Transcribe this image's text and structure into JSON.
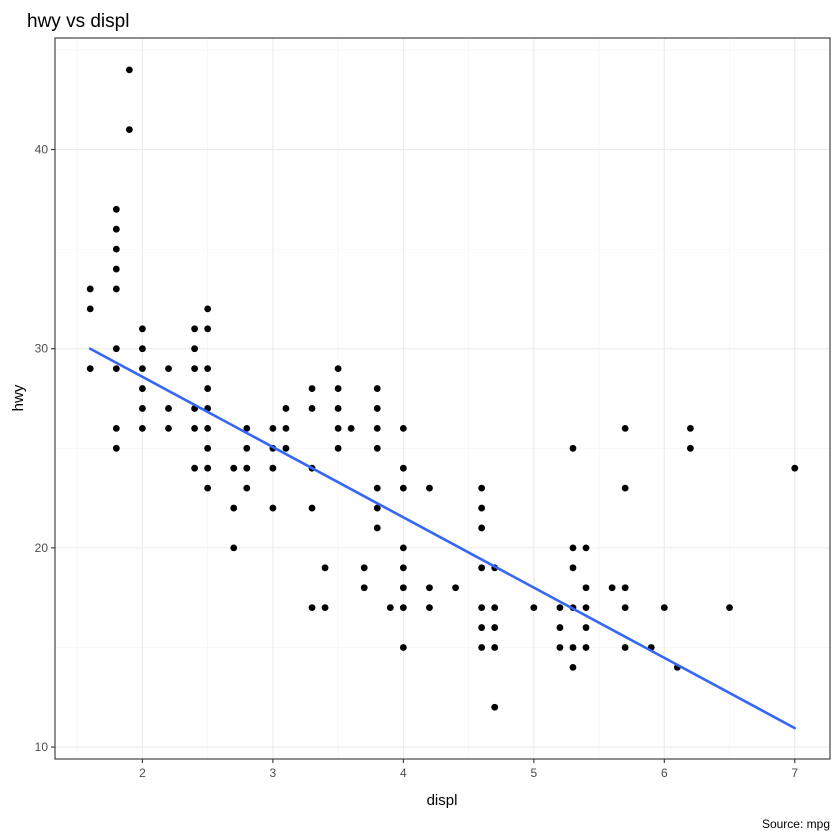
{
  "chart_data": {
    "type": "scatter",
    "title": "hwy vs displ",
    "xlabel": "displ",
    "ylabel": "hwy",
    "caption": "Source: mpg",
    "xlim": [
      1.33,
      7.27
    ],
    "ylim": [
      9.4,
      45.6
    ],
    "x_ticks": [
      2,
      3,
      4,
      5,
      6,
      7
    ],
    "x_tick_labels": [
      "2",
      "3",
      "4",
      "5",
      "6",
      "7"
    ],
    "y_ticks": [
      10,
      20,
      30,
      40
    ],
    "y_tick_labels": [
      "10",
      "20",
      "30",
      "40"
    ],
    "grid": true,
    "point_color": "#000000",
    "line_color": "#3366ff",
    "points": [
      [
        1.6,
        33
      ],
      [
        1.6,
        32
      ],
      [
        1.6,
        29
      ],
      [
        1.8,
        37
      ],
      [
        1.8,
        36
      ],
      [
        1.8,
        35
      ],
      [
        1.8,
        34
      ],
      [
        1.8,
        33
      ],
      [
        1.8,
        30
      ],
      [
        1.8,
        29
      ],
      [
        1.8,
        26
      ],
      [
        1.8,
        25
      ],
      [
        1.9,
        44
      ],
      [
        1.9,
        41
      ],
      [
        2.0,
        31
      ],
      [
        2.0,
        30
      ],
      [
        2.0,
        29
      ],
      [
        2.0,
        28
      ],
      [
        2.0,
        27
      ],
      [
        2.0,
        26
      ],
      [
        2.2,
        29
      ],
      [
        2.2,
        27
      ],
      [
        2.2,
        26
      ],
      [
        2.4,
        31
      ],
      [
        2.4,
        30
      ],
      [
        2.4,
        29
      ],
      [
        2.4,
        27
      ],
      [
        2.4,
        26
      ],
      [
        2.4,
        24
      ],
      [
        2.5,
        32
      ],
      [
        2.5,
        31
      ],
      [
        2.5,
        29
      ],
      [
        2.5,
        28
      ],
      [
        2.5,
        27
      ],
      [
        2.5,
        26
      ],
      [
        2.5,
        25
      ],
      [
        2.5,
        24
      ],
      [
        2.5,
        23
      ],
      [
        2.7,
        24
      ],
      [
        2.7,
        22
      ],
      [
        2.7,
        20
      ],
      [
        2.8,
        26
      ],
      [
        2.8,
        25
      ],
      [
        2.8,
        24
      ],
      [
        2.8,
        23
      ],
      [
        3.0,
        26
      ],
      [
        3.0,
        25
      ],
      [
        3.0,
        24
      ],
      [
        3.0,
        22
      ],
      [
        3.1,
        27
      ],
      [
        3.1,
        26
      ],
      [
        3.1,
        25
      ],
      [
        3.3,
        28
      ],
      [
        3.3,
        27
      ],
      [
        3.3,
        24
      ],
      [
        3.3,
        22
      ],
      [
        3.3,
        17
      ],
      [
        3.4,
        19
      ],
      [
        3.4,
        17
      ],
      [
        3.5,
        29
      ],
      [
        3.5,
        28
      ],
      [
        3.5,
        27
      ],
      [
        3.5,
        26
      ],
      [
        3.5,
        25
      ],
      [
        3.6,
        26
      ],
      [
        3.7,
        19
      ],
      [
        3.7,
        18
      ],
      [
        3.8,
        28
      ],
      [
        3.8,
        27
      ],
      [
        3.8,
        26
      ],
      [
        3.8,
        25
      ],
      [
        3.8,
        23
      ],
      [
        3.8,
        22
      ],
      [
        3.8,
        21
      ],
      [
        3.9,
        17
      ],
      [
        4.0,
        26
      ],
      [
        4.0,
        24
      ],
      [
        4.0,
        23
      ],
      [
        4.0,
        20
      ],
      [
        4.0,
        19
      ],
      [
        4.0,
        18
      ],
      [
        4.0,
        17
      ],
      [
        4.0,
        15
      ],
      [
        4.2,
        23
      ],
      [
        4.2,
        18
      ],
      [
        4.2,
        17
      ],
      [
        4.4,
        18
      ],
      [
        4.6,
        23
      ],
      [
        4.6,
        22
      ],
      [
        4.6,
        21
      ],
      [
        4.6,
        19
      ],
      [
        4.6,
        17
      ],
      [
        4.6,
        16
      ],
      [
        4.6,
        15
      ],
      [
        4.7,
        19
      ],
      [
        4.7,
        17
      ],
      [
        4.7,
        16
      ],
      [
        4.7,
        15
      ],
      [
        4.7,
        12
      ],
      [
        5.0,
        17
      ],
      [
        5.2,
        17
      ],
      [
        5.2,
        16
      ],
      [
        5.2,
        15
      ],
      [
        5.3,
        25
      ],
      [
        5.3,
        20
      ],
      [
        5.3,
        19
      ],
      [
        5.3,
        17
      ],
      [
        5.3,
        15
      ],
      [
        5.3,
        14
      ],
      [
        5.4,
        20
      ],
      [
        5.4,
        18
      ],
      [
        5.4,
        17
      ],
      [
        5.4,
        16
      ],
      [
        5.4,
        15
      ],
      [
        5.6,
        18
      ],
      [
        5.7,
        26
      ],
      [
        5.7,
        23
      ],
      [
        5.7,
        18
      ],
      [
        5.7,
        17
      ],
      [
        5.7,
        15
      ],
      [
        5.9,
        15
      ],
      [
        6.0,
        17
      ],
      [
        6.1,
        14
      ],
      [
        6.2,
        26
      ],
      [
        6.2,
        25
      ],
      [
        6.5,
        17
      ],
      [
        7.0,
        24
      ]
    ],
    "fit_line": {
      "type": "linear",
      "x": [
        1.6,
        7.0
      ],
      "y": [
        30.0,
        10.95
      ]
    }
  }
}
